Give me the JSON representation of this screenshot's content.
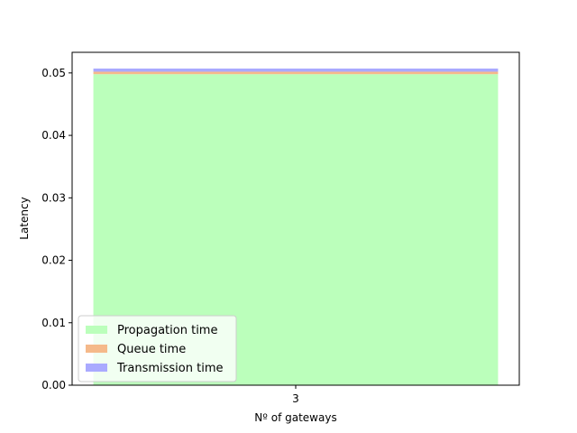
{
  "chart_data": {
    "type": "bar",
    "stacked": true,
    "categories": [
      "3"
    ],
    "xlabel": "Nº of gateways",
    "ylabel": "Latency",
    "ylim": [
      0,
      0.0533
    ],
    "yticks": [
      "0.00",
      "0.01",
      "0.02",
      "0.03",
      "0.04",
      "0.05"
    ],
    "series": [
      {
        "name": "Propagation time",
        "values": [
          0.0498
        ],
        "color": "#bbffbb"
      },
      {
        "name": "Queue time",
        "values": [
          0.0004
        ],
        "color": "#f5b98a"
      },
      {
        "name": "Transmission time",
        "values": [
          0.0005
        ],
        "color": "#aaaaff"
      }
    ],
    "legend_position": "lower-left",
    "grid": false
  }
}
